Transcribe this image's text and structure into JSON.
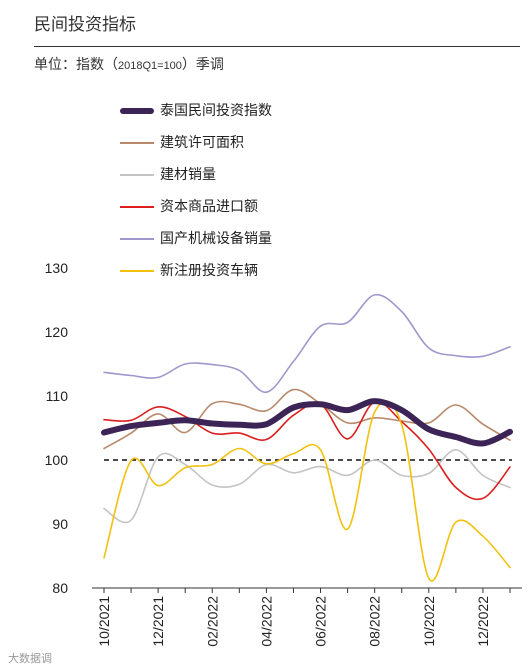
{
  "header": {
    "title": "民间投资指标",
    "subtitle_prefix": "单位：指数（",
    "subtitle_small": "2018Q1=100",
    "subtitle_suffix": "）季调"
  },
  "watermark": "大数据调",
  "chart_data": {
    "type": "line",
    "x": [
      "10/2021",
      "11/2021",
      "12/2021",
      "01/2022",
      "02/2022",
      "03/2022",
      "04/2022",
      "05/2022",
      "06/2022",
      "07/2022",
      "08/2022",
      "09/2022",
      "10/2022",
      "11/2022",
      "12/2022",
      "01/2023"
    ],
    "x_tick_labels": [
      "10/2021",
      "12/2021",
      "02/2022",
      "04/2022",
      "06/2022",
      "08/2022",
      "10/2022",
      "12/2022"
    ],
    "ylim": [
      80,
      130
    ],
    "y_ticks": [
      80,
      90,
      100,
      110,
      120,
      130
    ],
    "reference_line": 100,
    "legend_position": "top-left",
    "series": [
      {
        "name": "泰国民间投资指数",
        "color": "#3d2456",
        "values": [
          104.3,
          105.3,
          105.8,
          106.2,
          105.7,
          105.5,
          105.6,
          108.2,
          108.7,
          107.8,
          109.2,
          107.8,
          104.8,
          103.6,
          102.6,
          104.4
        ]
      },
      {
        "name": "建筑许可面积",
        "color": "#b8896a",
        "values": [
          101.8,
          104.2,
          107.2,
          104.3,
          108.8,
          108.7,
          107.7,
          111.0,
          108.8,
          105.8,
          106.6,
          106.1,
          105.8,
          108.6,
          105.6,
          103.1
        ]
      },
      {
        "name": "建材销量",
        "color": "#c4c4c4",
        "values": [
          92.4,
          90.6,
          100.5,
          99.3,
          96.1,
          96.2,
          99.3,
          98.0,
          99.0,
          97.6,
          100.0,
          97.6,
          97.9,
          101.6,
          97.6,
          95.7
        ]
      },
      {
        "name": "资本商品进口额",
        "color": "#dc1e1e",
        "values": [
          106.3,
          106.2,
          108.3,
          106.8,
          104.2,
          104.2,
          103.2,
          107.0,
          108.7,
          103.3,
          109.1,
          106.0,
          101.7,
          95.7,
          94.0,
          98.9
        ]
      },
      {
        "name": "国产机械设备销量",
        "color": "#9e98cc",
        "values": [
          113.7,
          113.2,
          112.9,
          115.0,
          114.9,
          114.0,
          110.6,
          115.4,
          120.9,
          121.5,
          125.8,
          123.2,
          117.5,
          116.3,
          116.2,
          117.7
        ]
      },
      {
        "name": "新注册投资车辆",
        "color": "#f2c10e",
        "values": [
          84.7,
          99.9,
          96.0,
          98.8,
          99.3,
          101.8,
          99.4,
          101.0,
          101.6,
          89.2,
          107.5,
          105.5,
          81.5,
          90.3,
          88.1,
          83.2
        ]
      }
    ]
  }
}
